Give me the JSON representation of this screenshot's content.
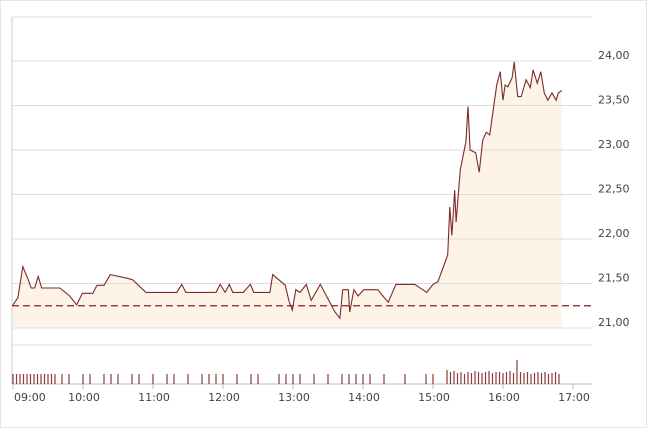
{
  "chart_data": [
    {
      "type": "line",
      "x": [
        9.0,
        9.07,
        9.14,
        9.21,
        9.26,
        9.31,
        9.36,
        9.41,
        9.67,
        9.81,
        9.91,
        9.99,
        10.14,
        10.2,
        10.3,
        10.39,
        10.63,
        10.71,
        10.9,
        11.34,
        11.41,
        11.47,
        11.9,
        11.96,
        12.03,
        12.09,
        12.14,
        12.29,
        12.39,
        12.44,
        12.67,
        12.71,
        12.89,
        12.94,
        12.99,
        13.04,
        13.1,
        13.19,
        13.26,
        13.39,
        13.6,
        13.67,
        13.71,
        13.79,
        13.81,
        13.87,
        13.93,
        14.01,
        14.21,
        14.36,
        14.47,
        14.74,
        14.91,
        15.0,
        15.07,
        15.21,
        15.24,
        15.27,
        15.31,
        15.33,
        15.39,
        15.47,
        15.5,
        15.53,
        15.61,
        15.66,
        15.71,
        15.76,
        15.81,
        15.86,
        15.91,
        15.96,
        16.0,
        16.03,
        16.07,
        16.13,
        16.16,
        16.21,
        16.26,
        16.33,
        16.39,
        16.43,
        16.49,
        16.54,
        16.59,
        16.64,
        16.7,
        16.76,
        16.79,
        16.84
      ],
      "values": [
        21.26,
        21.34,
        21.69,
        21.56,
        21.45,
        21.45,
        21.58,
        21.45,
        21.45,
        21.36,
        21.26,
        21.39,
        21.39,
        21.48,
        21.48,
        21.6,
        21.56,
        21.54,
        21.4,
        21.4,
        21.49,
        21.4,
        21.4,
        21.49,
        21.4,
        21.49,
        21.4,
        21.4,
        21.49,
        21.4,
        21.4,
        21.6,
        21.48,
        21.31,
        21.2,
        21.43,
        21.4,
        21.49,
        21.31,
        21.49,
        21.18,
        21.11,
        21.43,
        21.43,
        21.18,
        21.43,
        21.36,
        21.43,
        21.43,
        21.29,
        21.49,
        21.49,
        21.4,
        21.49,
        21.52,
        21.82,
        22.36,
        22.04,
        22.55,
        22.19,
        22.78,
        23.09,
        23.49,
        23.0,
        22.97,
        22.75,
        23.11,
        23.2,
        23.17,
        23.45,
        23.73,
        23.88,
        23.56,
        23.73,
        23.71,
        23.81,
        23.99,
        23.6,
        23.6,
        23.79,
        23.7,
        23.9,
        23.75,
        23.88,
        23.64,
        23.56,
        23.64,
        23.56,
        23.64,
        23.67
      ],
      "color": "#7a2b2b",
      "fill": "#fdf3e7",
      "reference_line": 21.25,
      "reference_color": "#8b1f1f",
      "xlim": [
        9,
        17
      ],
      "xticks": [
        {
          "value": 9,
          "label": "09:00"
        },
        {
          "value": 10,
          "label": "10:00"
        },
        {
          "value": 11,
          "label": "11:00"
        },
        {
          "value": 12,
          "label": "12:00"
        },
        {
          "value": 13,
          "label": "13:00"
        },
        {
          "value": 14,
          "label": "14:00"
        },
        {
          "value": 15,
          "label": "15:00"
        },
        {
          "value": 16,
          "label": "16:00"
        },
        {
          "value": 17,
          "label": "17:00"
        }
      ],
      "ylim": [
        21,
        24.5
      ],
      "yticks": [
        {
          "value": 21,
          "label": "21,00"
        },
        {
          "value": 21.5,
          "label": "21,50"
        },
        {
          "value": 22,
          "label": "22,00"
        },
        {
          "value": 22.5,
          "label": "22,50"
        },
        {
          "value": 23,
          "label": "23,00"
        },
        {
          "value": 23.5,
          "label": "23,50"
        },
        {
          "value": 24,
          "label": "24,00"
        }
      ],
      "grid": true
    },
    {
      "type": "bar",
      "color": "#8a3a3a",
      "x": [
        9.0,
        9.05,
        9.1,
        9.15,
        9.2,
        9.25,
        9.3,
        9.35,
        9.4,
        9.45,
        9.5,
        9.55,
        9.6,
        9.7,
        9.8,
        10.0,
        10.1,
        10.3,
        10.4,
        10.5,
        10.7,
        10.8,
        11.0,
        11.2,
        11.3,
        11.5,
        11.7,
        11.8,
        11.9,
        12.0,
        12.2,
        12.4,
        12.5,
        12.8,
        12.9,
        13.0,
        13.1,
        13.3,
        13.5,
        13.7,
        13.8,
        13.9,
        14.0,
        14.1,
        14.3,
        14.6,
        14.9,
        15.0,
        15.2,
        15.25,
        15.3,
        15.35,
        15.4,
        15.45,
        15.5,
        15.55,
        15.6,
        15.65,
        15.7,
        15.75,
        15.8,
        15.85,
        15.9,
        15.95,
        16.0,
        16.05,
        16.1,
        16.15,
        16.2,
        16.25,
        16.3,
        16.35,
        16.4,
        16.45,
        16.5,
        16.55,
        16.6,
        16.65,
        16.7,
        16.75,
        16.8
      ],
      "values": [
        10,
        10,
        10,
        10,
        10,
        10,
        10,
        10,
        10,
        10,
        10,
        10,
        10,
        10,
        10,
        10,
        10,
        10,
        10,
        10,
        10,
        10,
        10,
        10,
        10,
        10,
        10,
        10,
        10,
        10,
        10,
        10,
        10,
        10,
        10,
        10,
        10,
        10,
        10,
        10,
        10,
        10,
        10,
        10,
        10,
        10,
        10,
        10,
        14,
        12,
        13,
        11,
        12,
        10,
        12,
        11,
        13,
        12,
        11,
        12,
        13,
        11,
        12,
        12,
        11,
        12,
        13,
        11,
        24,
        12,
        11,
        12,
        10,
        11,
        12,
        11,
        12,
        10,
        11,
        12,
        10
      ],
      "ylim": [
        0,
        25
      ]
    }
  ]
}
